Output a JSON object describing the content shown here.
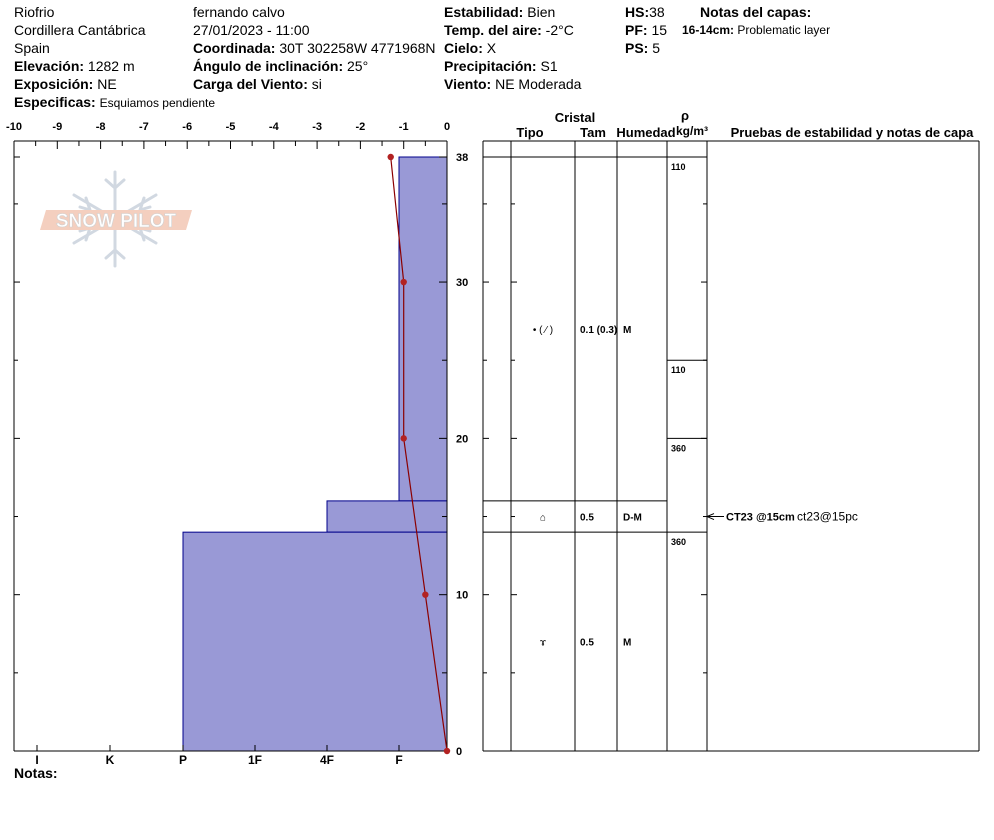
{
  "header": {
    "location": "Riofrio",
    "range": "Cordillera Cantábrica",
    "country": "Spain",
    "elevation_label": "Elevación:",
    "elevation": "1282 m",
    "aspect_label": "Exposición:",
    "aspect": "NE",
    "specifics_label": "Especificas:",
    "specifics": "Esquiamos pendiente",
    "observer": "fernando calvo",
    "datetime": "27/01/2023 - 11:00",
    "coord_label": "Coordinada:",
    "coord": "30T 302258W 4771968N",
    "slope_label": "Ángulo de inclinación:",
    "slope": "25°",
    "wind_load_label": "Carga del Viento:",
    "wind_load": "si",
    "stability_label": "Estabilidad:",
    "stability": "Bien",
    "air_temp_label": "Temp. del aire:",
    "air_temp": "-2°C",
    "sky_label": "Cielo:",
    "sky": "X",
    "precip_label": "Precipitación:",
    "precip": "S1",
    "wind_label": "Viento:",
    "wind": "NE Moderada",
    "hs_label": "HS:",
    "hs": "38",
    "pf_label": "PF:",
    "pf": "15",
    "ps_label": "PS:",
    "ps": "5",
    "layer_notes_title": "Notas del capas:",
    "layer_note_depth": "16-14cm:",
    "layer_note_text": "Problematic layer"
  },
  "logo": {
    "text": "SNOW PILOT"
  },
  "notes_label": "Notas:",
  "table": {
    "headers": {
      "crystal": "Cristal",
      "type": "Tipo",
      "size": "Tam",
      "moisture": "Humedad",
      "rho": "ρ",
      "density_unit": "kg/m³",
      "tests": "Pruebas de estabilidad y notas de capa"
    },
    "layers": [
      {
        "top": 38,
        "bottom": 16,
        "type": "• ( ⁄ )",
        "size": "0.1 (0.3)",
        "moisture": "M"
      },
      {
        "top": 16,
        "bottom": 14,
        "type": "⌂",
        "size": "0.5",
        "moisture": "D-M"
      },
      {
        "top": 14,
        "bottom": 0,
        "type": "ɤ",
        "size": "0.5",
        "moisture": "M"
      }
    ],
    "densities": [
      {
        "top": 38,
        "bottom": 25,
        "value": "110"
      },
      {
        "top": 25,
        "bottom": 20,
        "value": "110"
      },
      {
        "top": 20,
        "bottom": 14,
        "value": "360"
      },
      {
        "top": 14,
        "bottom": 0,
        "value": "360"
      }
    ],
    "test_marker": {
      "depth": 15,
      "label": "CT23 @15cm",
      "note": "ct23@15pc"
    }
  },
  "chart_data": {
    "type": "area",
    "temperature_axis": {
      "ticks": [
        "-10",
        "-9",
        "-8",
        "-7",
        "-6",
        "-5",
        "-4",
        "-3",
        "-2",
        "-1",
        "0"
      ],
      "range": [
        -10,
        0
      ]
    },
    "height_axis": {
      "ticks": [
        "0",
        "10",
        "20",
        "30",
        "38"
      ],
      "range": [
        0,
        38
      ]
    },
    "hardness_axis": {
      "labels": [
        "I",
        "K",
        "P",
        "1F",
        "4F",
        "F"
      ]
    },
    "hardness_profile": [
      {
        "top": 38,
        "bottom": 16,
        "hardness": "F"
      },
      {
        "top": 16,
        "bottom": 14,
        "hardness": "4F"
      },
      {
        "top": 14,
        "bottom": 0,
        "hardness": "P"
      }
    ],
    "temperature_profile": [
      {
        "height": 38,
        "temp": -1.3
      },
      {
        "height": 30,
        "temp": -1.0
      },
      {
        "height": 20,
        "temp": -1.0
      },
      {
        "height": 10,
        "temp": -0.5
      },
      {
        "height": 0,
        "temp": 0.0
      }
    ],
    "colors": {
      "hardness_fill": "#9999d6",
      "hardness_stroke": "#00008b",
      "temp_line": "#8b0000"
    }
  }
}
